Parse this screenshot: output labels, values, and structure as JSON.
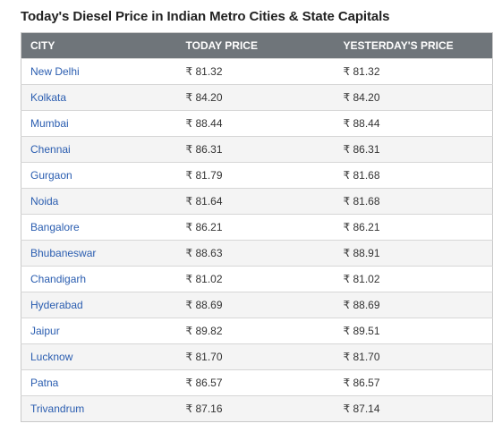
{
  "title": "Today's Diesel Price in Indian Metro Cities & State Capitals",
  "table": {
    "headers": [
      "CITY",
      "TODAY PRICE",
      "YESTERDAY'S PRICE"
    ],
    "rows": [
      {
        "city": "New Delhi",
        "today": "₹ 81.32",
        "yesterday": "₹ 81.32"
      },
      {
        "city": "Kolkata",
        "today": "₹ 84.20",
        "yesterday": "₹ 84.20"
      },
      {
        "city": "Mumbai",
        "today": "₹ 88.44",
        "yesterday": "₹ 88.44"
      },
      {
        "city": "Chennai",
        "today": "₹ 86.31",
        "yesterday": "₹ 86.31"
      },
      {
        "city": "Gurgaon",
        "today": "₹ 81.79",
        "yesterday": "₹ 81.68"
      },
      {
        "city": "Noida",
        "today": "₹ 81.64",
        "yesterday": "₹ 81.68"
      },
      {
        "city": "Bangalore",
        "today": "₹ 86.21",
        "yesterday": "₹ 86.21"
      },
      {
        "city": "Bhubaneswar",
        "today": "₹ 88.63",
        "yesterday": "₹ 88.91"
      },
      {
        "city": "Chandigarh",
        "today": "₹ 81.02",
        "yesterday": "₹ 81.02"
      },
      {
        "city": "Hyderabad",
        "today": "₹ 88.69",
        "yesterday": "₹ 88.69"
      },
      {
        "city": "Jaipur",
        "today": "₹ 89.82",
        "yesterday": "₹ 89.51"
      },
      {
        "city": "Lucknow",
        "today": "₹ 81.70",
        "yesterday": "₹ 81.70"
      },
      {
        "city": "Patna",
        "today": "₹ 86.57",
        "yesterday": "₹ 86.57"
      },
      {
        "city": "Trivandrum",
        "today": "₹ 87.16",
        "yesterday": "₹ 87.14"
      }
    ]
  },
  "colors": {
    "header_bg": "#6f757a",
    "header_text": "#ffffff",
    "link": "#2a5db0",
    "stripe": "#f4f4f4"
  }
}
